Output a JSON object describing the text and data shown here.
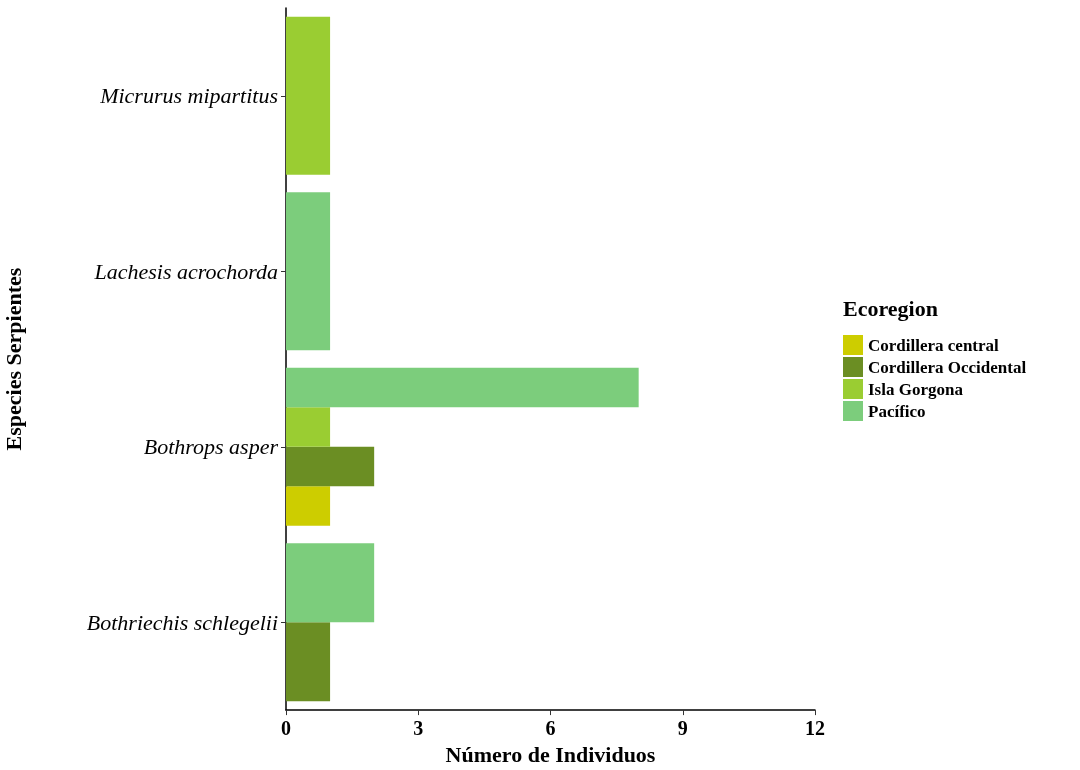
{
  "chart_data": {
    "type": "bar",
    "orientation": "horizontal",
    "xlabel": "Número de Individuos",
    "ylabel": "Especies Serpientes",
    "legend_title": "Ecoregion",
    "categories": [
      "Micrurus mipartitus",
      "Lachesis acrochorda",
      "Bothrops asper",
      "Bothriechis schlegelii"
    ],
    "series": [
      {
        "name": "Cordillera central",
        "color": "#cdcd00",
        "values": [
          null,
          null,
          1,
          null
        ]
      },
      {
        "name": "Cordillera Occidental",
        "color": "#6b8e23",
        "values": [
          null,
          null,
          2,
          1
        ]
      },
      {
        "name": "Isla Gorgona",
        "color": "#9acd32",
        "values": [
          1,
          null,
          1,
          null
        ]
      },
      {
        "name": "Pacífico",
        "color": "#7ccd7c",
        "values": [
          null,
          1,
          8,
          2
        ]
      }
    ],
    "xlim": [
      0,
      12
    ],
    "xticks": [
      0,
      3,
      6,
      9,
      12
    ],
    "grid": false,
    "legend": "right"
  }
}
